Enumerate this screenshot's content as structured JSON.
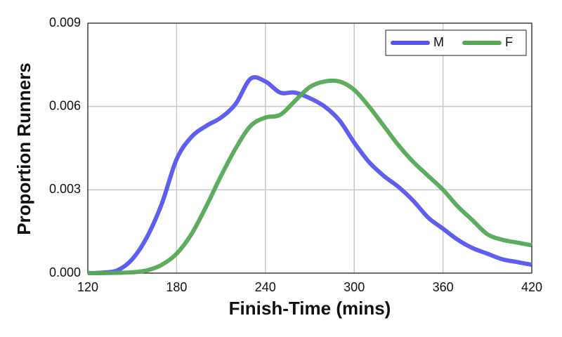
{
  "chart_data": {
    "type": "line",
    "xlabel": "Finish-Time (mins)",
    "ylabel": "Proportion Runners",
    "x": [
      120,
      130,
      140,
      150,
      160,
      170,
      180,
      190,
      200,
      210,
      220,
      230,
      240,
      250,
      260,
      270,
      280,
      290,
      300,
      310,
      320,
      330,
      340,
      350,
      360,
      370,
      380,
      390,
      400,
      410,
      420
    ],
    "series": [
      {
        "name": "M",
        "color": "#5555ee",
        "values": [
          0,
          2e-05,
          0.0001,
          0.0005,
          0.0013,
          0.0025,
          0.0041,
          0.0049,
          0.0053,
          0.0056,
          0.0061,
          0.007,
          0.0069,
          0.0065,
          0.0065,
          0.0063,
          0.006,
          0.0055,
          0.0047,
          0.004,
          0.0035,
          0.0031,
          0.0026,
          0.002,
          0.0016,
          0.0012,
          0.0009,
          0.0007,
          0.0005,
          0.0004,
          0.0003
        ]
      },
      {
        "name": "F",
        "color": "#55a855",
        "values": [
          0,
          0,
          1e-05,
          3e-05,
          0.0001,
          0.0003,
          0.0007,
          0.0014,
          0.0024,
          0.0035,
          0.0045,
          0.0053,
          0.0056,
          0.0057,
          0.0062,
          0.0067,
          0.0069,
          0.0069,
          0.0066,
          0.006,
          0.0053,
          0.0046,
          0.004,
          0.0035,
          0.003,
          0.0024,
          0.0019,
          0.0014,
          0.0012,
          0.0011,
          0.001
        ]
      }
    ],
    "xlim": [
      120,
      420
    ],
    "xticks": [
      120,
      180,
      240,
      300,
      360,
      420
    ],
    "ylim": [
      0,
      0.009
    ],
    "yticks": [
      {
        "value": 0,
        "label": "0.000"
      },
      {
        "value": 0.003,
        "label": "0.003"
      },
      {
        "value": 0.006,
        "label": "0.006"
      },
      {
        "value": 0.009,
        "label": "0.009"
      }
    ],
    "grid": true,
    "legend": "upper right"
  }
}
